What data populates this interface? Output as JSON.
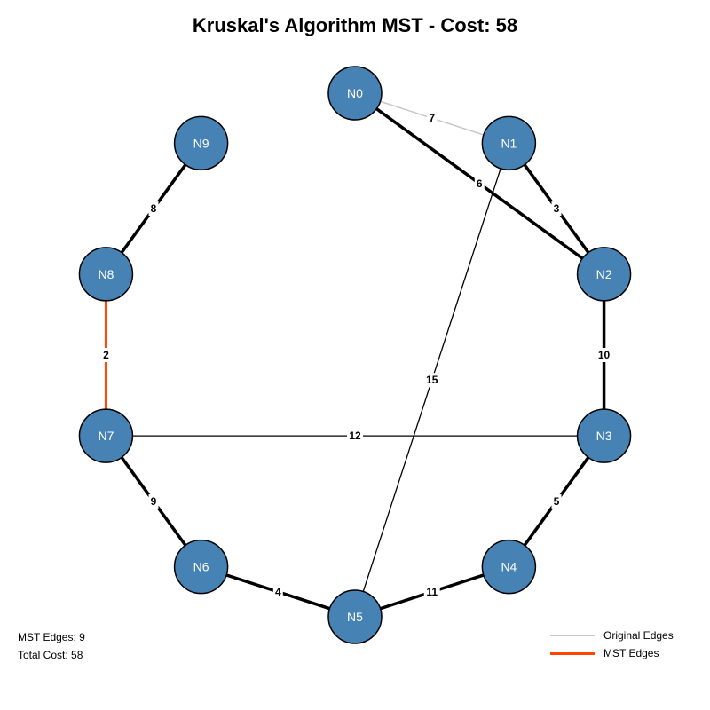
{
  "title": "Kruskal's Algorithm MST - Cost: 58",
  "colors": {
    "node_fill": "#4682B4",
    "node_stroke": "#000000",
    "original_edge": "#C8C8C8",
    "mst_edge": "#FF4500",
    "mst_highlight": "#000000"
  },
  "nodes": [
    "N0",
    "N1",
    "N2",
    "N3",
    "N4",
    "N5",
    "N6",
    "N7",
    "N8",
    "N9"
  ],
  "edges": [
    {
      "from": "N0",
      "to": "N1",
      "weight": "7",
      "style": "original"
    },
    {
      "from": "N0",
      "to": "N2",
      "weight": "6",
      "style": "mst"
    },
    {
      "from": "N1",
      "to": "N2",
      "weight": "3",
      "style": "mst"
    },
    {
      "from": "N1",
      "to": "N5",
      "weight": "15",
      "style": "thin"
    },
    {
      "from": "N2",
      "to": "N3",
      "weight": "10",
      "style": "mst"
    },
    {
      "from": "N3",
      "to": "N7",
      "weight": "12",
      "style": "thin"
    },
    {
      "from": "N3",
      "to": "N4",
      "weight": "5",
      "style": "mst"
    },
    {
      "from": "N4",
      "to": "N5",
      "weight": "11",
      "style": "mst"
    },
    {
      "from": "N5",
      "to": "N6",
      "weight": "4",
      "style": "mst"
    },
    {
      "from": "N6",
      "to": "N7",
      "weight": "9",
      "style": "mst"
    },
    {
      "from": "N7",
      "to": "N8",
      "weight": "2",
      "style": "highlight"
    },
    {
      "from": "N8",
      "to": "N9",
      "weight": "8",
      "style": "mst"
    }
  ],
  "stats": {
    "mst_edges": "MST Edges: 9",
    "total_cost": "Total Cost: 58"
  },
  "legend": {
    "original_label": "Original Edges",
    "mst_label": "MST Edges"
  }
}
